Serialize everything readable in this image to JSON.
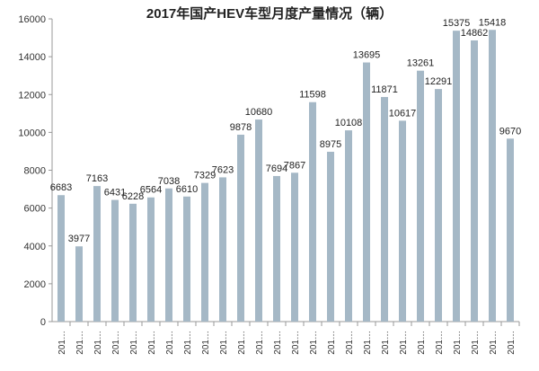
{
  "chart_data": {
    "type": "bar",
    "title": "2017年国产HEV车型月度产量情况（辆）",
    "xlabel": "",
    "ylabel": "",
    "ylim": [
      0,
      16000
    ],
    "yticks": [
      0,
      2000,
      4000,
      6000,
      8000,
      10000,
      12000,
      14000,
      16000
    ],
    "categories": [
      "201…",
      "201…",
      "201…",
      "201…",
      "201…",
      "201…",
      "201…",
      "201…",
      "201…",
      "201…",
      "201…",
      "201…",
      "201…",
      "201…",
      "201…",
      "201…",
      "201…",
      "201…",
      "201…",
      "201…",
      "201…",
      "201…",
      "201…",
      "201…",
      "201…",
      "201…"
    ],
    "values": [
      6683,
      3977,
      7163,
      6431,
      6228,
      6564,
      7038,
      6610,
      7329,
      7623,
      9878,
      10680,
      7694,
      7867,
      11598,
      8975,
      10108,
      13695,
      11871,
      10617,
      13261,
      12291,
      15375,
      14862,
      15418,
      9670
    ],
    "bar_color": "#a5b8c6",
    "grid": false,
    "legend": "none"
  }
}
